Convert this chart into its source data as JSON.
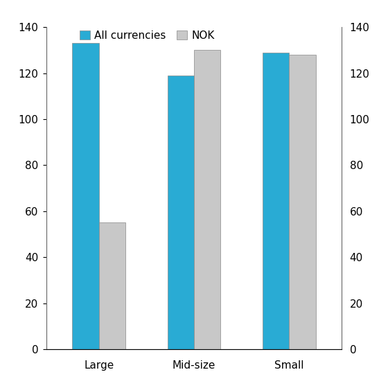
{
  "categories": [
    "Large",
    "Mid-size",
    "Small"
  ],
  "all_currencies": [
    133,
    119,
    129
  ],
  "nok": [
    55,
    130,
    128
  ],
  "bar_color_blue": "#29ABD4",
  "bar_color_gray": "#C8C8C8",
  "bar_edge_color": "#888888",
  "ylim": [
    0,
    140
  ],
  "yticks": [
    0,
    20,
    40,
    60,
    80,
    100,
    120,
    140
  ],
  "legend_labels": [
    "All currencies",
    "NOK"
  ],
  "background_color": "#ffffff",
  "bar_width": 0.28,
  "tick_fontsize": 11,
  "legend_fontsize": 11
}
